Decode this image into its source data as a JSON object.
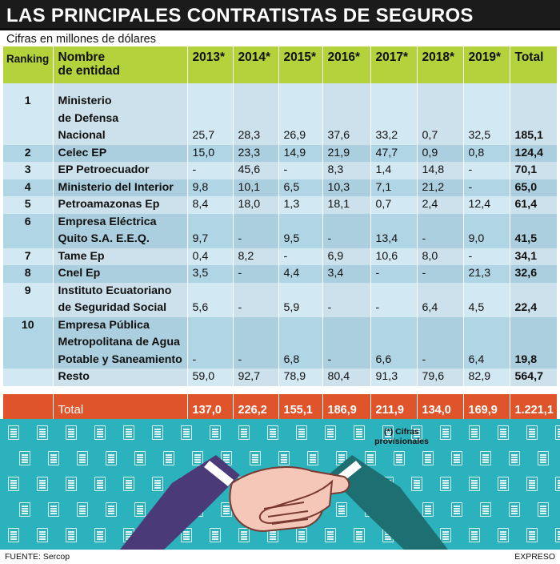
{
  "title": "LAS PRINCIPALES CONTRATISTAS DE SEGUROS",
  "subtitle": "Cifras en millones de dólares",
  "headers": {
    "ranking": "Ranking",
    "nombre_1": "Nombre",
    "nombre_2": "de entidad",
    "y2013": "2013*",
    "y2014": "2014*",
    "y2015": "2015*",
    "y2016": "2016*",
    "y2017": "2017*",
    "y2018": "2018*",
    "y2019": "2019*",
    "total": "Total"
  },
  "rows": [
    {
      "rank": "1",
      "name_lines": [
        "Ministerio",
        "de Defensa",
        "Nacional"
      ],
      "values": [
        "25,7",
        "28,3",
        "26,9",
        "37,6",
        "33,2",
        "0,7",
        "32,5"
      ],
      "total": "185,1"
    },
    {
      "rank": "2",
      "name_lines": [
        "Celec EP"
      ],
      "values": [
        "15,0",
        "23,3",
        "14,9",
        "21,9",
        "47,7",
        "0,9",
        "0,8"
      ],
      "total": "124,4"
    },
    {
      "rank": "3",
      "name_lines": [
        "EP Petroecuador"
      ],
      "values": [
        "-",
        "45,6",
        "-",
        "8,3",
        "1,4",
        "14,8",
        "-"
      ],
      "total": "70,1"
    },
    {
      "rank": "4",
      "name_lines": [
        "Ministerio del Interior"
      ],
      "values": [
        "9,8",
        "10,1",
        "6,5",
        "10,3",
        "7,1",
        "21,2",
        "-"
      ],
      "total": "65,0"
    },
    {
      "rank": "5",
      "name_lines": [
        "Petroamazonas Ep"
      ],
      "values": [
        "8,4",
        "18,0",
        "1,3",
        "18,1",
        "0,7",
        "2,4",
        "12,4"
      ],
      "total": "61,4"
    },
    {
      "rank": "6",
      "name_lines": [
        "Empresa Eléctrica",
        "Quito S.A. E.E.Q."
      ],
      "values": [
        "9,7",
        "-",
        "9,5",
        "-",
        "13,4",
        "-",
        "9,0"
      ],
      "total": "41,5"
    },
    {
      "rank": "7",
      "name_lines": [
        "Tame Ep"
      ],
      "values": [
        "0,4",
        "8,2",
        "-",
        "6,9",
        "10,6",
        "8,0",
        "-"
      ],
      "total": "34,1"
    },
    {
      "rank": "8",
      "name_lines": [
        "Cnel Ep"
      ],
      "values": [
        "3,5",
        "-",
        "4,4",
        "3,4",
        "-",
        "-",
        "21,3"
      ],
      "total": "32,6"
    },
    {
      "rank": "9",
      "name_lines": [
        "Instituto Ecuatoriano",
        "de Seguridad Social"
      ],
      "values": [
        "5,6",
        "-",
        "5,9",
        "-",
        "-",
        "6,4",
        "4,5"
      ],
      "total": "22,4"
    },
    {
      "rank": "10",
      "name_lines": [
        "Empresa Pública",
        "Metropolitana de Agua",
        "Potable y Saneamiento"
      ],
      "values": [
        "-",
        "-",
        "6,8",
        "-",
        "6,6",
        "-",
        "6,4"
      ],
      "total": "19,8"
    },
    {
      "rank": "",
      "name_lines": [
        "Resto"
      ],
      "values": [
        "59,0",
        "92,7",
        "78,9",
        "80,4",
        "91,3",
        "79,6",
        "82,9"
      ],
      "total": "564,7"
    }
  ],
  "totals": {
    "label": "Total",
    "values": [
      "137,0",
      "226,2",
      "155,1",
      "186,9",
      "211,9",
      "134,0",
      "169,9"
    ],
    "total": "1.221,1"
  },
  "note": "(*) Cifras provisionales",
  "source": "FUENTE: Sercop",
  "brand": "EXPRESO",
  "colors": {
    "header_green": "#b4d23b",
    "row_light": "#d2e8f2",
    "row_dark": "#b0d5e5",
    "total_orange": "#e0542c",
    "teal": "#2bb2bc",
    "title_bar": "#1b1b1b"
  },
  "chart_data": {
    "type": "table",
    "title": "LAS PRINCIPALES CONTRATISTAS DE SEGUROS",
    "subtitle": "Cifras en millones de dólares",
    "columns": [
      "Ranking",
      "Nombre de entidad",
      "2013*",
      "2014*",
      "2015*",
      "2016*",
      "2017*",
      "2018*",
      "2019*",
      "Total"
    ],
    "categories": [
      "Ministerio de Defensa Nacional",
      "Celec EP",
      "EP Petroecuador",
      "Ministerio del Interior",
      "Petroamazonas Ep",
      "Empresa Eléctrica Quito S.A. E.E.Q.",
      "Tame Ep",
      "Cnel Ep",
      "Instituto Ecuatoriano de Seguridad Social",
      "Empresa Pública Metropolitana de Agua Potable y Saneamiento",
      "Resto",
      "Total"
    ],
    "series": [
      {
        "name": "2013*",
        "values": [
          25.7,
          15.0,
          null,
          9.8,
          8.4,
          9.7,
          0.4,
          3.5,
          5.6,
          null,
          59.0,
          137.0
        ]
      },
      {
        "name": "2014*",
        "values": [
          28.3,
          23.3,
          45.6,
          10.1,
          18.0,
          null,
          8.2,
          null,
          null,
          null,
          92.7,
          226.2
        ]
      },
      {
        "name": "2015*",
        "values": [
          26.9,
          14.9,
          null,
          6.5,
          1.3,
          9.5,
          null,
          4.4,
          5.9,
          6.8,
          78.9,
          155.1
        ]
      },
      {
        "name": "2016*",
        "values": [
          37.6,
          21.9,
          8.3,
          10.3,
          18.1,
          null,
          6.9,
          3.4,
          null,
          null,
          80.4,
          186.9
        ]
      },
      {
        "name": "2017*",
        "values": [
          33.2,
          47.7,
          1.4,
          7.1,
          0.7,
          13.4,
          10.6,
          null,
          null,
          6.6,
          91.3,
          211.9
        ]
      },
      {
        "name": "2018*",
        "values": [
          0.7,
          0.9,
          14.8,
          21.2,
          2.4,
          null,
          8.0,
          null,
          6.4,
          null,
          79.6,
          134.0
        ]
      },
      {
        "name": "2019*",
        "values": [
          32.5,
          0.8,
          null,
          null,
          12.4,
          9.0,
          null,
          21.3,
          4.5,
          6.4,
          82.9,
          169.9
        ]
      },
      {
        "name": "Total",
        "values": [
          185.1,
          124.4,
          70.1,
          65.0,
          61.4,
          41.5,
          34.1,
          32.6,
          22.4,
          19.8,
          564.7,
          1221.1
        ]
      }
    ]
  }
}
